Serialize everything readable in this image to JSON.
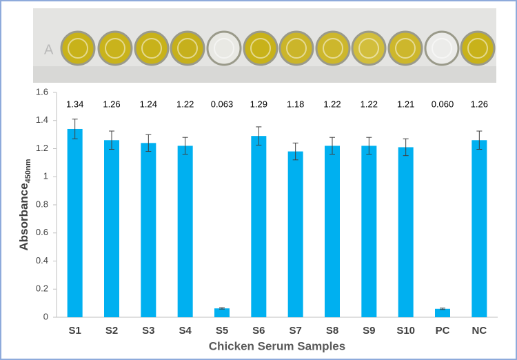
{
  "chart_data": {
    "type": "bar",
    "y_label": "Absorbance",
    "y_label_sub": "450nm",
    "x_label": "Chicken Serum Samples",
    "categories": [
      "S1",
      "S2",
      "S3",
      "S4",
      "S5",
      "S6",
      "S7",
      "S8",
      "S9",
      "S10",
      "PC",
      "NC"
    ],
    "values": [
      1.34,
      1.26,
      1.24,
      1.22,
      0.063,
      1.29,
      1.18,
      1.22,
      1.22,
      1.21,
      0.06,
      1.26
    ],
    "value_labels": [
      "1.34",
      "1.26",
      "1.24",
      "1.22",
      "0.063",
      "1.29",
      "1.18",
      "1.22",
      "1.22",
      "1.21",
      "0.060",
      "1.26"
    ],
    "errors": [
      0.07,
      0.065,
      0.06,
      0.06,
      0.005,
      0.065,
      0.06,
      0.06,
      0.06,
      0.06,
      0.005,
      0.065
    ],
    "color": "#00b0f0",
    "ylim": [
      0,
      1.6
    ],
    "yticks": [
      0,
      0.2,
      0.4,
      0.6,
      0.8,
      1,
      1.2,
      1.4,
      1.6
    ],
    "grid": false
  }
}
